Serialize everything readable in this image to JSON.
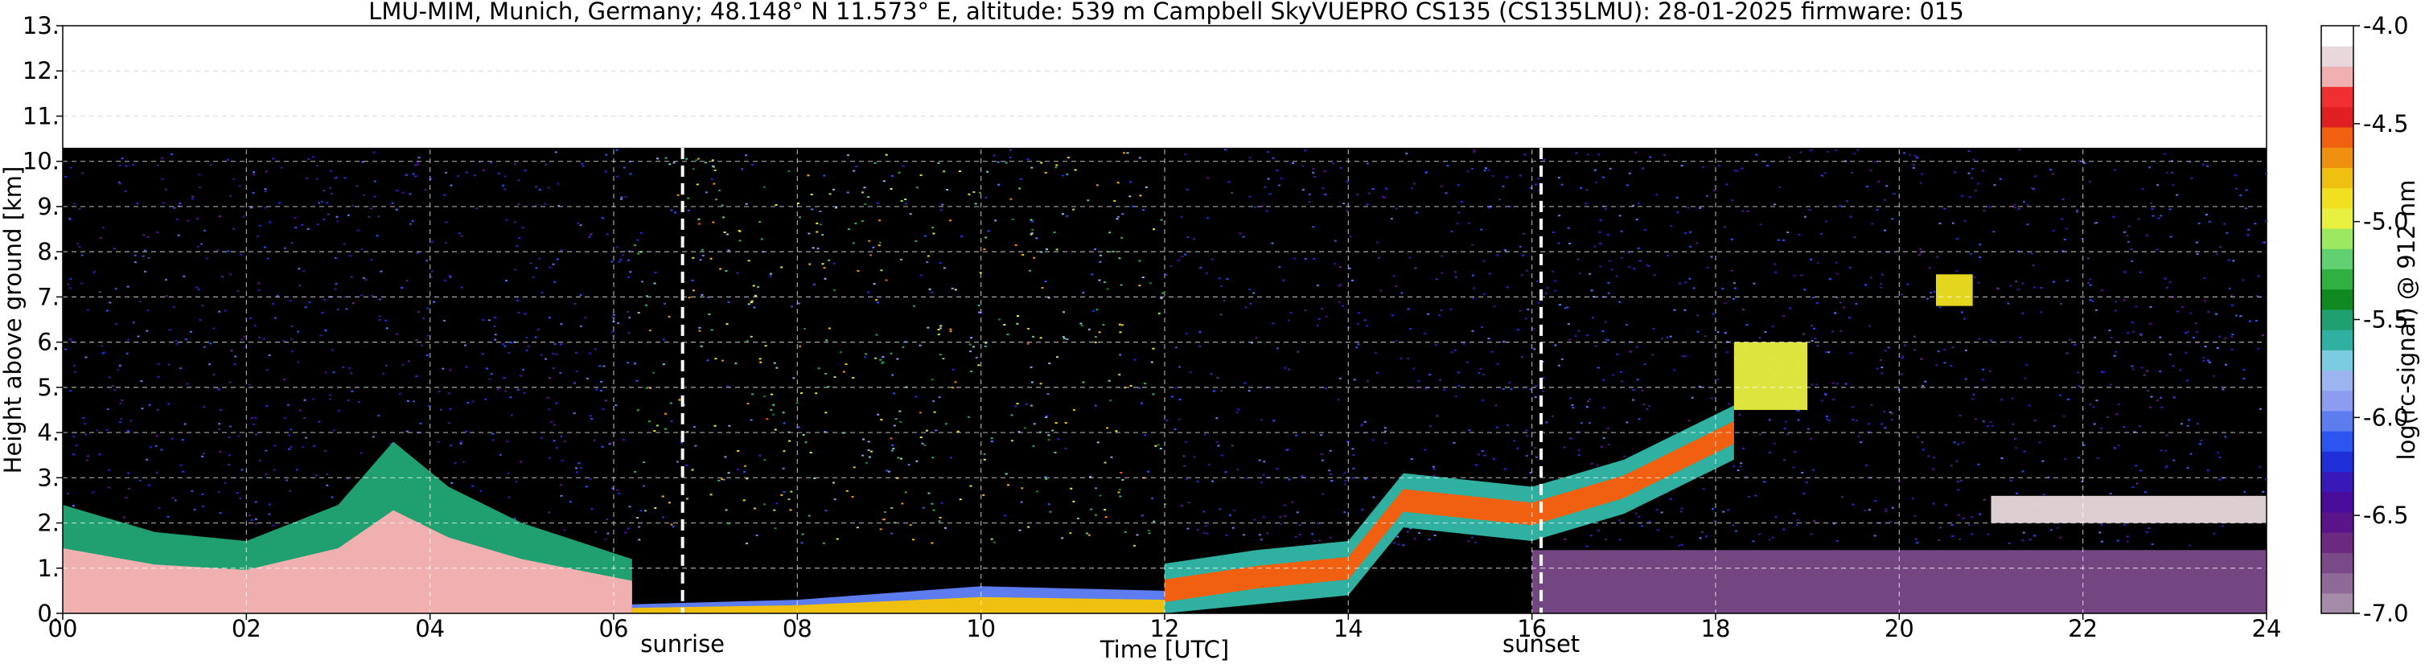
{
  "figure": {
    "title": "LMU-MIM, Munich, Germany; 48.148° N 11.573° E, altitude: 539 m    Campbell SkyVUEPRO CS135 (CS135LMU): 28-01-2025    firmware: 015"
  },
  "chart_data": {
    "type": "heatmap",
    "title": "LMU-MIM, Munich, Germany; 48.148° N 11.573° E, altitude: 539 m    Campbell SkyVUEPRO CS135 (CS135LMU): 28-01-2025    firmware: 015",
    "xlabel": "Time [UTC]",
    "ylabel": "Height above ground [km]",
    "xlim": [
      0,
      24
    ],
    "ylim": [
      0,
      13
    ],
    "xticks": [
      0,
      2,
      4,
      6,
      8,
      10,
      12,
      14,
      16,
      18,
      20,
      22,
      24
    ],
    "xtick_labels": [
      "00",
      "02",
      "04",
      "06",
      "08",
      "10",
      "12",
      "14",
      "16",
      "18",
      "20",
      "22",
      "24"
    ],
    "yticks": [
      0,
      1,
      2,
      3,
      4,
      5,
      6,
      7,
      8,
      9,
      10,
      11,
      12,
      13
    ],
    "ytick_labels": [
      "0.",
      "1.",
      "2.",
      "3.",
      "4.",
      "5.",
      "6.",
      "7.",
      "8.",
      "9.",
      "10.",
      "11.",
      "12.",
      "13."
    ],
    "grid": true,
    "data_top_km": 10.3,
    "colorbar": {
      "label": "log(rc-signal) @ 912 nm",
      "range": [
        -7.0,
        -4.0
      ],
      "ticks": [
        -7.0,
        -6.5,
        -6.0,
        -5.5,
        -5.0,
        -4.5,
        -4.0
      ],
      "tick_labels": [
        "-7.0",
        "-6.5",
        "-6.0",
        "-5.5",
        "-5.0",
        "-4.5",
        "-4.0"
      ],
      "colors": [
        "#a48ba8",
        "#8e6a98",
        "#7a4a88",
        "#6a2a80",
        "#5a148a",
        "#4a0c9a",
        "#3818b8",
        "#2030d8",
        "#2c54f0",
        "#5c7cf0",
        "#8c9cf0",
        "#9cb4f0",
        "#7ccce0",
        "#30b0a0",
        "#20a070",
        "#108a20",
        "#30b040",
        "#60d070",
        "#9ce860",
        "#e8f040",
        "#f0e020",
        "#f0c010",
        "#f09010",
        "#f06010",
        "#e02020",
        "#f03030",
        "#f0b0b0",
        "#e8d8dc",
        "#ffffff"
      ]
    },
    "annotations": [
      {
        "label": "sunrise",
        "x": 6.75
      },
      {
        "label": "sunset",
        "x": 16.1
      }
    ],
    "features": [
      {
        "name": "background",
        "color": "#000000",
        "x": [
          0,
          24
        ],
        "y": [
          0,
          10.3
        ]
      },
      {
        "name": "night boundary layer",
        "x": [
          0,
          6.2
        ],
        "y_bottom": 0,
        "y_top_profile": [
          [
            0,
            2.4
          ],
          [
            1,
            1.8
          ],
          [
            2,
            1.6
          ],
          [
            3,
            2.4
          ],
          [
            3.6,
            3.8
          ],
          [
            4.2,
            2.8
          ],
          [
            5,
            2.0
          ],
          [
            6.2,
            1.2
          ]
        ],
        "level": -4.3
      },
      {
        "name": "daytime surface layer",
        "x": [
          6.2,
          12.0
        ],
        "y_bottom": 0,
        "y_top_profile": [
          [
            6.2,
            0.2
          ],
          [
            8,
            0.3
          ],
          [
            10,
            0.6
          ],
          [
            12,
            0.5
          ]
        ],
        "level": -4.8
      },
      {
        "name": "rising aerosol layer",
        "x": [
          12.0,
          18.2
        ],
        "y_profile": [
          [
            12.0,
            0.5
          ],
          [
            13,
            0.8
          ],
          [
            14,
            1.0
          ],
          [
            14.6,
            2.5
          ],
          [
            16,
            2.2
          ],
          [
            17,
            2.8
          ],
          [
            18.2,
            4.0
          ]
        ],
        "level": -4.6
      },
      {
        "name": "mid-level cloud",
        "x": [
          18.2,
          19.0
        ],
        "y": [
          4.5,
          6.0
        ],
        "level": -5.0
      },
      {
        "name": "mid-level cloud",
        "x": [
          20.4,
          20.8
        ],
        "y": [
          6.8,
          7.5
        ],
        "level": -4.9
      },
      {
        "name": "evening residual layer",
        "x": [
          16.0,
          24
        ],
        "y": [
          0,
          1.4
        ],
        "level": -6.7
      },
      {
        "name": "low cloud top",
        "x": [
          21.0,
          24
        ],
        "y": [
          2.0,
          2.6
        ],
        "level": -4.2
      },
      {
        "name": "daytime noise band",
        "x": [
          6.2,
          12.0
        ],
        "y": [
          2.0,
          10.3
        ],
        "level": -5.6
      }
    ]
  }
}
